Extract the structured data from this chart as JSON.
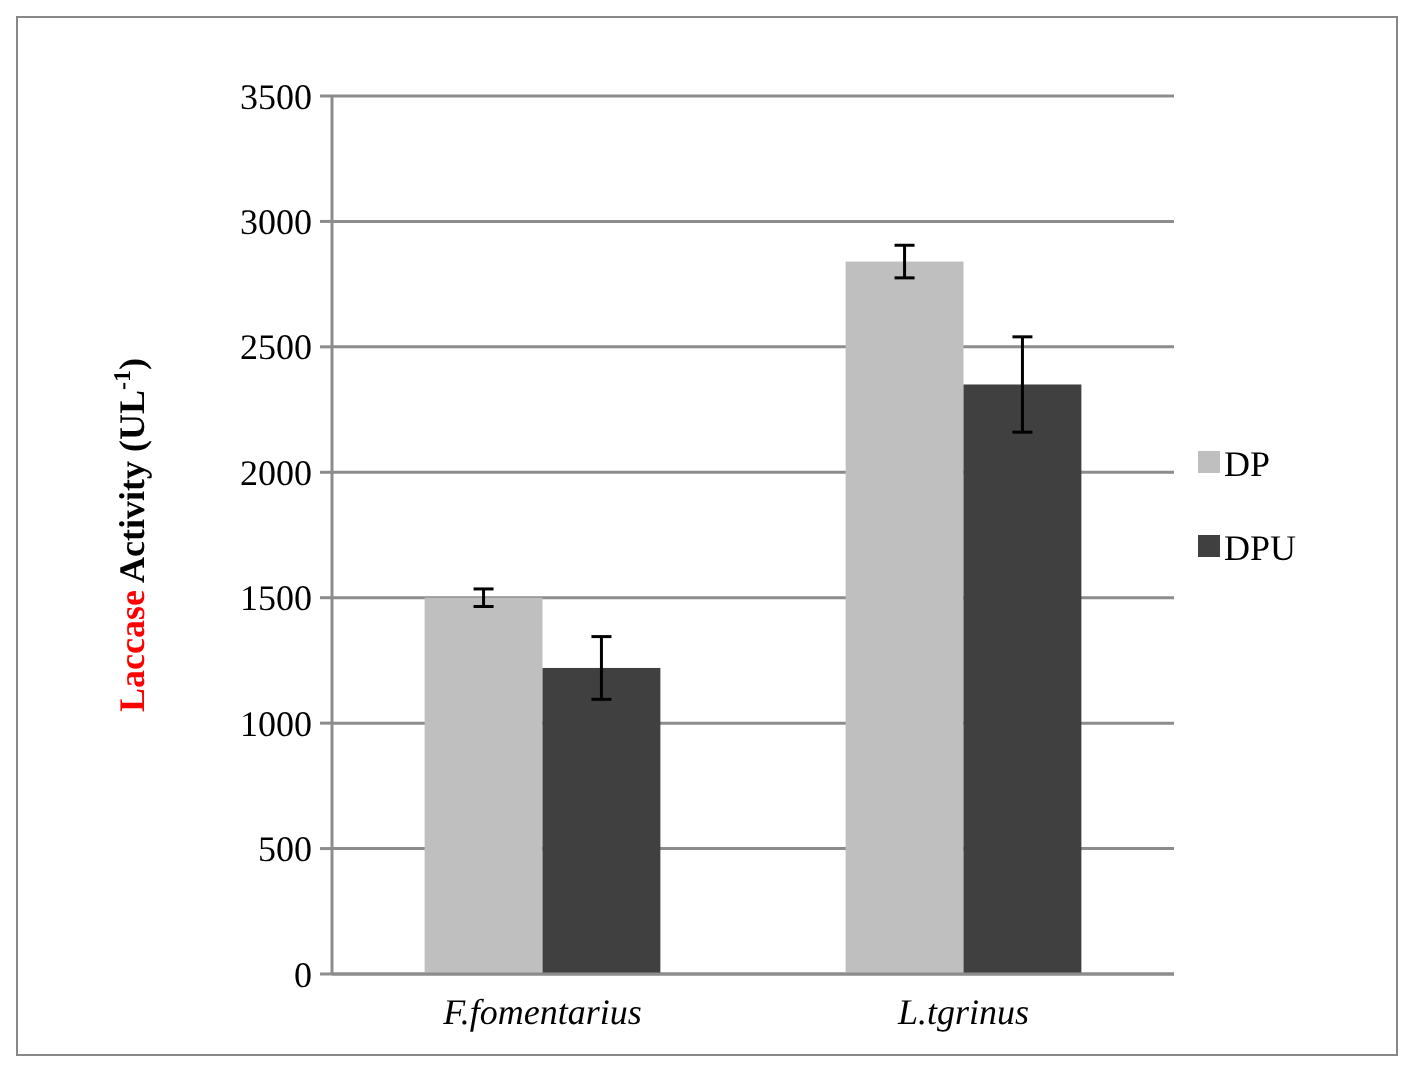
{
  "chart_data": {
    "type": "bar",
    "ylabel": "Laccase Activity (UL$^{-1}$)",
    "categories": [
      "F.fomentarius",
      "L.tgrinus"
    ],
    "series": [
      {
        "name": "DP",
        "color": "#bfbfbf",
        "values": [
          1500,
          2840
        ],
        "errors": [
          35,
          65
        ]
      },
      {
        "name": "DPU",
        "color": "#404040",
        "values": [
          1220,
          2350
        ],
        "errors": [
          125,
          190
        ]
      }
    ],
    "ylim": [
      0,
      3500
    ],
    "yticks": [
      0,
      500,
      1000,
      1500,
      2000,
      2500,
      3000,
      3500
    ],
    "grid": "y",
    "legend": "right"
  }
}
